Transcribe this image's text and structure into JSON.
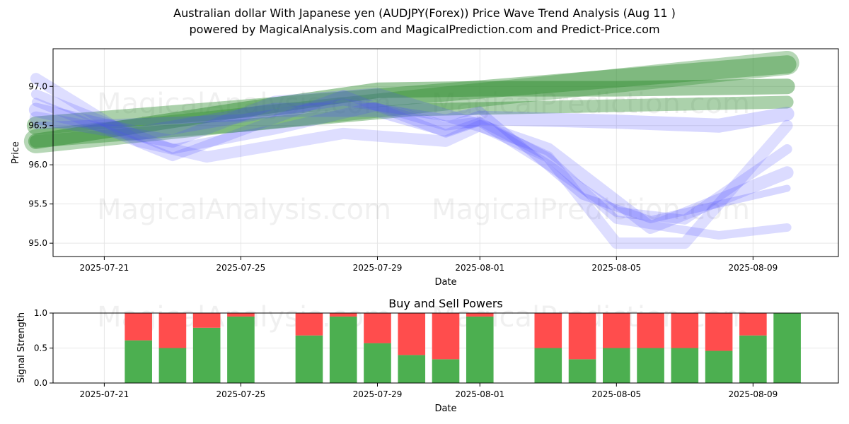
{
  "title": "Australian dollar With Japanese yen (AUDJPY(Forex)) Price Wave Trend Analysis (Aug 11 )",
  "subtitle": "powered by MagicalAnalysis.com and MagicalPrediction.com and Predict-Price.com",
  "watermarks": [
    "MagicalAnalysis.com",
    "MagicalPrediction.com"
  ],
  "colors": {
    "green_band": "#2e8b2e",
    "blue_band": "#4a4aff",
    "buy": "#4caf50",
    "sell": "#ff4d4d",
    "grid": "#e6e6e6"
  },
  "chart_data": [
    {
      "type": "line",
      "title": "",
      "xlabel": "Date",
      "ylabel": "Price",
      "xlim": [
        "2025-07-19T12:00",
        "2025-08-11T12:00"
      ],
      "ylim": [
        94.83,
        97.48
      ],
      "xticks": [
        "2025-07-21",
        "2025-07-25",
        "2025-07-29",
        "2025-08-01",
        "2025-08-05",
        "2025-08-09"
      ],
      "yticks": [
        95.0,
        95.5,
        96.0,
        96.5,
        97.0
      ],
      "grid": true,
      "series": [
        {
          "group": "green",
          "x": [
            "2025-07-19",
            "2025-08-10"
          ],
          "y": [
            96.3,
            97.3
          ]
        },
        {
          "group": "green",
          "x": [
            "2025-07-19",
            "2025-08-10"
          ],
          "y": [
            96.5,
            97.28
          ]
        },
        {
          "group": "green",
          "x": [
            "2025-07-19",
            "2025-07-25",
            "2025-07-29",
            "2025-08-01",
            "2025-08-05",
            "2025-08-10"
          ],
          "y": [
            96.3,
            96.7,
            96.95,
            96.97,
            96.97,
            97.0
          ]
        },
        {
          "group": "green",
          "x": [
            "2025-07-19",
            "2025-07-25",
            "2025-07-30",
            "2025-08-10"
          ],
          "y": [
            96.3,
            96.5,
            96.7,
            96.8
          ]
        },
        {
          "group": "blue",
          "x": [
            "2025-07-19",
            "2025-07-22",
            "2025-07-26",
            "2025-07-29",
            "2025-07-31",
            "2025-08-01",
            "2025-08-05",
            "2025-08-08",
            "2025-08-10"
          ],
          "y": [
            96.7,
            96.4,
            96.7,
            96.7,
            96.45,
            96.6,
            96.55,
            96.5,
            96.65
          ]
        },
        {
          "group": "blue",
          "x": [
            "2025-07-19",
            "2025-07-23",
            "2025-07-26",
            "2025-07-29",
            "2025-07-31",
            "2025-08-01",
            "2025-08-03",
            "2025-08-05",
            "2025-08-07",
            "2025-08-10"
          ],
          "y": [
            96.9,
            96.2,
            96.45,
            96.75,
            96.5,
            96.55,
            96.0,
            95.4,
            95.3,
            96.2
          ]
        },
        {
          "group": "blue",
          "x": [
            "2025-07-19",
            "2025-07-23",
            "2025-07-28",
            "2025-07-31",
            "2025-08-01",
            "2025-08-03",
            "2025-08-05",
            "2025-08-08",
            "2025-08-10"
          ],
          "y": [
            96.8,
            96.1,
            96.9,
            96.4,
            96.55,
            96.1,
            95.3,
            95.1,
            95.2
          ]
        },
        {
          "group": "blue",
          "x": [
            "2025-07-19",
            "2025-07-22",
            "2025-07-24",
            "2025-07-28",
            "2025-07-31",
            "2025-08-01",
            "2025-08-03",
            "2025-08-05",
            "2025-08-07",
            "2025-08-10"
          ],
          "y": [
            97.1,
            96.3,
            96.1,
            96.4,
            96.3,
            96.5,
            96.1,
            95.0,
            95.0,
            96.5
          ]
        },
        {
          "group": "blue",
          "x": [
            "2025-07-19",
            "2025-07-23",
            "2025-07-26",
            "2025-07-29",
            "2025-08-01",
            "2025-08-03",
            "2025-08-06",
            "2025-08-10"
          ],
          "y": [
            96.6,
            96.3,
            96.8,
            96.9,
            96.5,
            96.2,
            95.2,
            95.9
          ]
        },
        {
          "group": "blue",
          "x": [
            "2025-07-19",
            "2025-07-25",
            "2025-07-28",
            "2025-07-31",
            "2025-08-01",
            "2025-08-04",
            "2025-08-06",
            "2025-08-10"
          ],
          "y": [
            96.5,
            96.6,
            96.8,
            96.6,
            96.7,
            95.6,
            95.3,
            95.7
          ]
        }
      ]
    },
    {
      "type": "bar",
      "title": "Buy and Sell Powers",
      "xlabel": "Date",
      "ylabel": "Signal Strength",
      "ylim": [
        0,
        1.0
      ],
      "xlim": [
        "2025-07-19T12:00",
        "2025-08-11T12:00"
      ],
      "xticks": [
        "2025-07-21",
        "2025-07-25",
        "2025-07-29",
        "2025-08-01",
        "2025-08-05",
        "2025-08-09"
      ],
      "yticks": [
        0.0,
        0.5,
        1.0
      ],
      "categories": [
        "2025-07-22",
        "2025-07-23",
        "2025-07-24",
        "2025-07-25",
        "2025-07-27",
        "2025-07-28",
        "2025-07-29",
        "2025-07-30",
        "2025-07-31",
        "2025-08-01",
        "2025-08-03",
        "2025-08-04",
        "2025-08-05",
        "2025-08-06",
        "2025-08-07",
        "2025-08-08",
        "2025-08-09",
        "2025-08-10"
      ],
      "series": [
        {
          "name": "Buy",
          "values": [
            0.61,
            0.5,
            0.79,
            0.95,
            0.68,
            0.95,
            0.57,
            0.4,
            0.34,
            0.95,
            0.5,
            0.34,
            0.5,
            0.5,
            0.5,
            0.46,
            0.68,
            1.0
          ]
        },
        {
          "name": "Sell",
          "values": [
            0.39,
            0.5,
            0.21,
            0.05,
            0.32,
            0.05,
            0.43,
            0.6,
            0.66,
            0.05,
            0.5,
            0.66,
            0.5,
            0.5,
            0.5,
            0.54,
            0.32,
            0.0
          ]
        }
      ]
    }
  ]
}
